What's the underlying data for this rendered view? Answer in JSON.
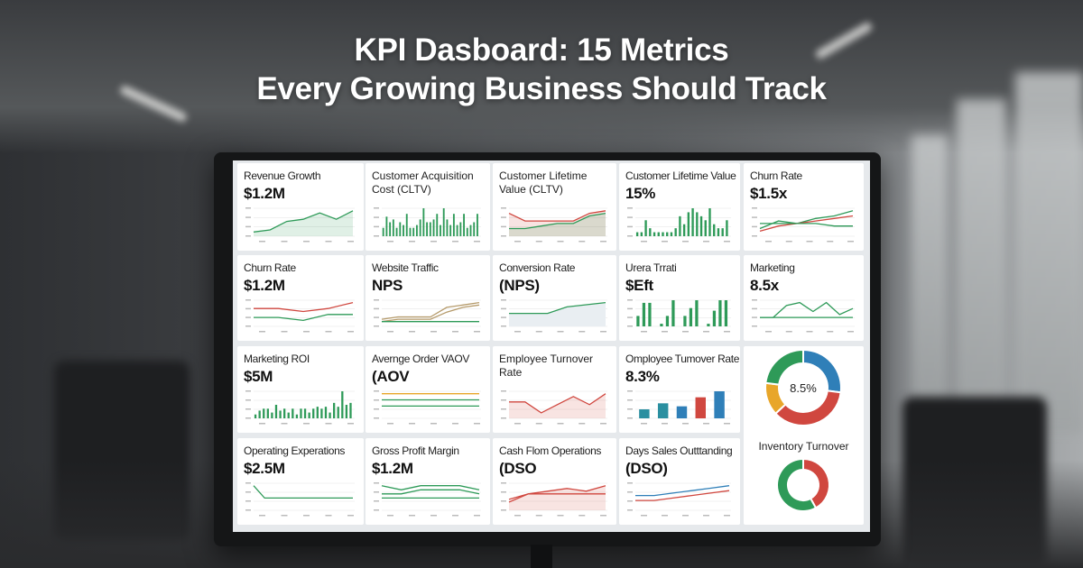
{
  "headline": {
    "line1": "KPI Dasboard: 15 Metrics",
    "line2": "Every Growing Business Should Track"
  },
  "colors": {
    "green": "#2e9a58",
    "red": "#d0473f",
    "blue": "#2f7fb8",
    "teal": "#2a8fa0",
    "yellow": "#e8a62a",
    "tan": "#b59a6a"
  },
  "cards": [
    {
      "title": "Revenue Growth",
      "value": "$1.2M",
      "chart": {
        "type": "line",
        "series": [
          {
            "color": "green",
            "fill": true,
            "values": [
              2,
              3,
              7,
              8,
              11,
              8,
              12
            ]
          }
        ]
      }
    },
    {
      "title": "Customer Acquisition Cost (CLTV)",
      "value": "",
      "chart": {
        "type": "bar",
        "color": "green",
        "values": [
          3,
          7,
          5,
          6,
          3,
          5,
          4,
          8,
          3,
          3,
          4,
          6,
          10,
          5,
          5,
          6,
          8,
          4,
          10,
          6,
          4,
          8,
          4,
          5,
          8,
          3,
          4,
          5,
          8
        ]
      }
    },
    {
      "title": "Customer Lifetime Value (CLTV)",
      "value": "",
      "chart": {
        "type": "line",
        "series": [
          {
            "color": "red",
            "fill": true,
            "values": [
              9,
              6,
              6,
              6,
              6,
              9,
              10
            ]
          },
          {
            "color": "green",
            "fill": true,
            "values": [
              3,
              3,
              4,
              5,
              5,
              8,
              9
            ]
          }
        ]
      }
    },
    {
      "title": "Customer Lifetime Value",
      "value": "15%",
      "chart": {
        "type": "bar",
        "color": "green",
        "values": [
          1,
          1,
          4,
          2,
          1,
          1,
          1,
          1,
          1,
          2,
          5,
          3,
          6,
          7,
          6,
          5,
          4,
          7,
          3,
          2,
          2,
          4
        ]
      }
    },
    {
      "title": "Churn Rate",
      "value": "$1.5x",
      "chart": {
        "type": "line",
        "series": [
          {
            "color": "green",
            "values": [
              3,
              6,
              5,
              7,
              8,
              10
            ]
          },
          {
            "color": "red",
            "values": [
              2,
              4,
              5,
              6,
              7,
              8
            ]
          },
          {
            "color": "green",
            "values": [
              5,
              5,
              5,
              5,
              4,
              4
            ]
          }
        ]
      }
    },
    {
      "title": "Churn Rate",
      "value": "$1.2M",
      "chart": {
        "type": "line",
        "series": [
          {
            "color": "red",
            "values": [
              6,
              6,
              5,
              6,
              8
            ]
          },
          {
            "color": "green",
            "values": [
              3,
              3,
              2,
              4,
              4
            ]
          }
        ]
      }
    },
    {
      "title": "Website Traffic",
      "value": "NPS",
      "chart": {
        "type": "line",
        "series": [
          {
            "color": "tan",
            "values": [
              3,
              4,
              4,
              4,
              8,
              9,
              10
            ]
          },
          {
            "color": "tan",
            "values": [
              2,
              3,
              3,
              3,
              6,
              8,
              9
            ]
          },
          {
            "color": "green",
            "values": [
              2,
              2,
              2,
              2,
              2,
              2,
              2
            ]
          }
        ]
      }
    },
    {
      "title": "Conversion Rate",
      "value": "(NPS)",
      "chart": {
        "type": "line",
        "series": [
          {
            "color": "green",
            "fill": true,
            "fillColor": "#e9eef2",
            "values": [
              6,
              6,
              6,
              9,
              10,
              11
            ]
          }
        ]
      }
    },
    {
      "title": "Urera Trrati",
      "value": "$Eft",
      "chart": {
        "type": "bar",
        "color": "green",
        "values": [
          4,
          9,
          9,
          0,
          1,
          4,
          10,
          0,
          4,
          7,
          10,
          0,
          1,
          6,
          10,
          10
        ]
      }
    },
    {
      "title": "Marketing",
      "value": "8.5x",
      "chart": {
        "type": "line",
        "series": [
          {
            "color": "green",
            "values": [
              3,
              3,
              7,
              8,
              5,
              8,
              4,
              6
            ]
          },
          {
            "color": "green",
            "values": [
              3,
              3,
              3,
              3,
              3,
              3,
              3,
              3
            ]
          }
        ]
      }
    },
    {
      "title": "Marketing ROI",
      "value": "$5M",
      "chart": {
        "type": "bar",
        "color": "green",
        "values": [
          2,
          4,
          5,
          5,
          3,
          7,
          4,
          5,
          3,
          5,
          2,
          5,
          5,
          3,
          5,
          6,
          5,
          6,
          3,
          8,
          6,
          14,
          7,
          8
        ]
      }
    },
    {
      "title": "Avernge Order VAOV",
      "value": "(AOV",
      "chart": {
        "type": "line",
        "series": [
          {
            "color": "yellow",
            "values": [
              4,
              4,
              4,
              4,
              4,
              4
            ]
          },
          {
            "color": "green",
            "values": [
              3,
              3,
              3,
              3,
              3,
              3
            ]
          },
          {
            "color": "green",
            "values": [
              2,
              2,
              2,
              2,
              2,
              2
            ]
          }
        ]
      }
    },
    {
      "title": "Employee Turnover Rate",
      "value": "",
      "chart": {
        "type": "line",
        "series": [
          {
            "color": "red",
            "fill": true,
            "values": [
              6,
              6,
              2,
              5,
              8,
              5,
              9
            ]
          }
        ]
      }
    },
    {
      "title": "Omployee Tumover Rate",
      "value": "8.3%",
      "chart": {
        "type": "bar",
        "colors": [
          "teal",
          "teal",
          "blue",
          "red",
          "blue"
        ],
        "values": [
          3,
          5,
          4,
          7,
          9
        ]
      }
    },
    {
      "title": "Operating Experations",
      "value": "$2.5M",
      "chart": {
        "type": "line",
        "series": [
          {
            "color": "green",
            "values": [
              4,
              2,
              2,
              2,
              2,
              2,
              2,
              2,
              2,
              2
            ]
          }
        ]
      }
    },
    {
      "title": "Gross Profit Margin",
      "value": "$1.2M",
      "chart": {
        "type": "line",
        "series": [
          {
            "color": "green",
            "values": [
              6,
              5,
              6,
              6,
              6,
              5
            ]
          },
          {
            "color": "green",
            "values": [
              4,
              4,
              5,
              5,
              5,
              4
            ]
          },
          {
            "color": "green",
            "values": [
              3,
              3,
              3,
              3,
              3,
              3
            ]
          }
        ]
      }
    },
    {
      "title": "Cash Flom Operations",
      "value": "(DSO",
      "chart": {
        "type": "line",
        "series": [
          {
            "color": "red",
            "fill": true,
            "values": [
              3,
              6,
              7,
              8,
              7,
              9
            ]
          },
          {
            "color": "red",
            "values": [
              4,
              6,
              6,
              6,
              6,
              6
            ]
          }
        ]
      }
    },
    {
      "title": "Days Sales Outttanding",
      "value": "(DSO)",
      "chart": {
        "type": "line",
        "series": [
          {
            "color": "blue",
            "values": [
              6,
              6,
              7,
              8,
              9,
              10
            ]
          },
          {
            "color": "red",
            "values": [
              4,
              4,
              5,
              6,
              7,
              8
            ]
          }
        ]
      }
    }
  ],
  "donuts": [
    {
      "label": "8.5%",
      "segments": [
        {
          "color": "blue",
          "value": 27
        },
        {
          "color": "red",
          "value": 36
        },
        {
          "color": "yellow",
          "value": 14
        },
        {
          "color": "green",
          "value": 23
        }
      ]
    },
    {
      "title": "Inventory Turnover",
      "segments": [
        {
          "color": "red",
          "value": 42
        },
        {
          "color": "green",
          "value": 58
        }
      ]
    }
  ]
}
